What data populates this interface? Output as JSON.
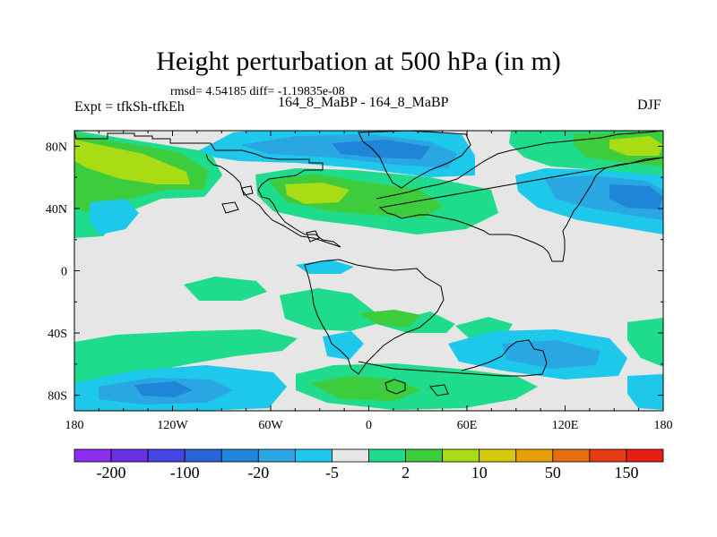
{
  "chart_data": {
    "type": "heatmap",
    "title": "Height perturbation at 500 hPa (in m)",
    "stats_label": "rmsd= 4.54185 diff= -1.19835e-08",
    "left_string": "Expt = tfkSh-tfkEh",
    "center_string": "164_8_MaBP - 164_8_MaBP",
    "right_string": "DJF",
    "xlim": [
      -180,
      180
    ],
    "ylim": [
      -90,
      90
    ],
    "x_ticks": [
      -180,
      -120,
      -60,
      0,
      60,
      120,
      180
    ],
    "x_tick_labels": [
      "180",
      "120W",
      "60W",
      "0",
      "60E",
      "120E",
      "180"
    ],
    "y_ticks": [
      80,
      40,
      0,
      -40,
      -80
    ],
    "y_tick_labels": [
      "80N",
      "40N",
      "0",
      "40S",
      "80S"
    ],
    "colorbar": {
      "colors": [
        "#8b2ef0",
        "#6a2fe0",
        "#4545e6",
        "#2a62d8",
        "#1e85d8",
        "#2aa7e3",
        "#1ec8ea",
        "#e6e6e6",
        "#1fdc8c",
        "#3ccc3c",
        "#a8dc14",
        "#d8c80a",
        "#e6a00a",
        "#e66e12",
        "#e63c12",
        "#e61e14"
      ],
      "tick_labels": [
        "-200",
        "-100",
        "-20",
        "-5",
        "2",
        "10",
        "50",
        "150"
      ]
    },
    "regions": [
      {
        "sign": "positive",
        "level": "2 to 10",
        "description": "broad NH belt 80N-40N, 160W-40W and 90E-180",
        "values": [
          {
            "lon": -165,
            "lat": 60,
            "value": 12
          },
          {
            "lon": -30,
            "lat": 40,
            "value": 12
          },
          {
            "lon": 160,
            "lat": 68,
            "value": 12
          }
        ]
      },
      {
        "sign": "negative",
        "level": "-5 to -20",
        "description": "North Atlantic / Eurasia 80N-60N",
        "values": [
          {
            "lon": 20,
            "lat": 72,
            "value": -22
          }
        ]
      },
      {
        "sign": "negative",
        "level": "-5 to -20",
        "description": "North Pacific 40N-60N",
        "values": [
          {
            "lon": 150,
            "lat": 45,
            "value": -22
          }
        ]
      },
      {
        "sign": "positive",
        "level": "2 to 10",
        "description": "Southern Ocean 60S-80S",
        "values": [
          {
            "lon": 30,
            "lat": -75,
            "value": 8
          }
        ]
      },
      {
        "sign": "negative",
        "level": "-5 to -20",
        "description": "South Pacific / Indian Ocean 50S-70S",
        "values": [
          {
            "lon": -150,
            "lat": -78,
            "value": -20
          },
          {
            "lon": 150,
            "lat": -55,
            "value": -20
          }
        ]
      }
    ]
  }
}
